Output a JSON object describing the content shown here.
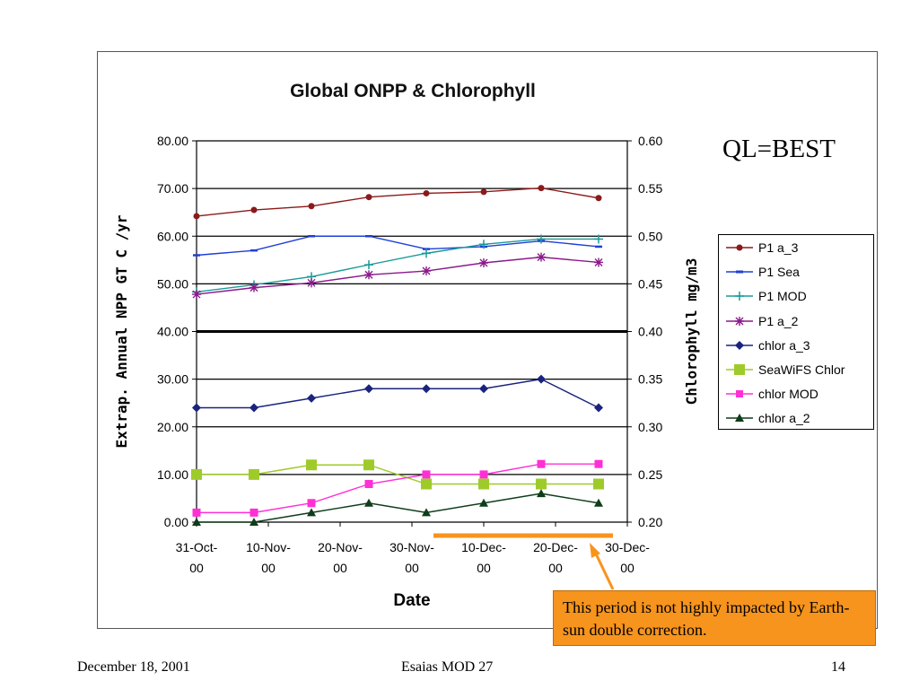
{
  "slide": {
    "ql_label": "QL=BEST",
    "callout_text": "This period is not highly impacted by Earth-sun double correction.",
    "footer_left": "December 18, 2001",
    "footer_center": "Esaias  MOD 27",
    "footer_right": "14"
  },
  "chart_data": {
    "type": "line",
    "title": "Global ONPP & Chlorophyll",
    "xlabel": "Date",
    "ylabel": "Extrap. Annual NPP  GT C /yr",
    "y2label": "Chlorophyll mg/m3",
    "ylim": [
      0,
      80
    ],
    "y2lim": [
      0.2,
      0.6
    ],
    "x_ticks": [
      "31-Oct-00",
      "10-Nov-00",
      "20-Nov-00",
      "30-Nov-00",
      "10-Dec-00",
      "20-Dec-00",
      "30-Dec-00"
    ],
    "y_ticks": [
      "0.00",
      "10.00",
      "20.00",
      "30.00",
      "40.00",
      "50.00",
      "60.00",
      "70.00",
      "80.00"
    ],
    "y2_ticks": [
      "0.20",
      "0.25",
      "0.30",
      "0.35",
      "0.40",
      "0.45",
      "0.50",
      "0.55",
      "0.60"
    ],
    "grid": true,
    "legend_position": "right",
    "highlight_range": [
      "3-Dec-00",
      "28-Dec-00"
    ],
    "x_dates": [
      "31-Oct-00",
      "8-Nov-00",
      "16-Nov-00",
      "24-Nov-00",
      "2-Dec-00",
      "10-Dec-00",
      "18-Dec-00",
      "26-Dec-00"
    ],
    "series": [
      {
        "name": "P1 a_3",
        "axis": "left",
        "color": "#8b1a1a",
        "marker": "circle",
        "values": [
          64.2,
          65.5,
          66.3,
          68.2,
          69.0,
          69.3,
          70.1,
          68.0
        ]
      },
      {
        "name": "P1 Sea",
        "axis": "left",
        "color": "#1f3fd6",
        "marker": "dash",
        "values": [
          56.0,
          57.0,
          60.0,
          60.0,
          57.3,
          57.8,
          59.0,
          57.8
        ]
      },
      {
        "name": "P1 MOD",
        "axis": "left",
        "color": "#1a9a9a",
        "marker": "plus",
        "values": [
          48.3,
          49.8,
          51.5,
          54.0,
          56.4,
          58.3,
          59.4,
          59.4
        ]
      },
      {
        "name": "P1 a_2",
        "axis": "left",
        "color": "#8b1a8b",
        "marker": "star",
        "values": [
          47.8,
          49.2,
          50.2,
          51.9,
          52.7,
          54.4,
          55.6,
          54.5
        ]
      },
      {
        "name": "chlor a_3",
        "axis": "right",
        "color": "#1a237e",
        "marker": "diamond",
        "values": [
          0.32,
          0.32,
          0.33,
          0.34,
          0.34,
          0.34,
          0.35,
          0.32
        ]
      },
      {
        "name": "SeaWiFS Chlor",
        "axis": "right",
        "color": "#9ecb2a",
        "marker": "square",
        "values": [
          0.25,
          0.25,
          0.26,
          0.26,
          0.24,
          0.24,
          0.24,
          0.24
        ]
      },
      {
        "name": "chlor MOD",
        "axis": "right",
        "color": "#ff2fd6",
        "marker": "smallsquare",
        "values": [
          0.21,
          0.21,
          0.22,
          0.24,
          0.25,
          0.25,
          0.261,
          0.261
        ]
      },
      {
        "name": "chlor a_2",
        "axis": "right",
        "color": "#0f3d1a",
        "marker": "triangle",
        "values": [
          0.2,
          0.2,
          0.21,
          0.22,
          0.21,
          0.22,
          0.23,
          0.22
        ]
      }
    ]
  }
}
